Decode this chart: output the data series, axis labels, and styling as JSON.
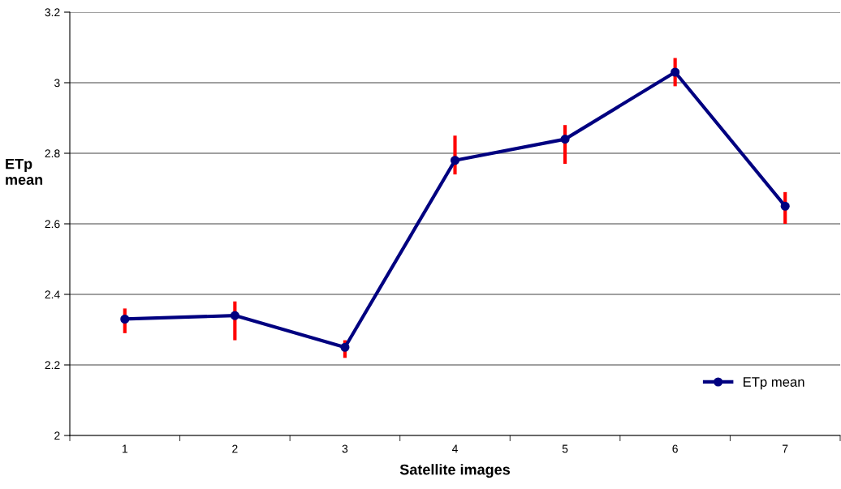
{
  "chart_data": {
    "type": "line",
    "xlabel": "Satellite images",
    "ylabel": "ETp\nmean",
    "categories": [
      "1",
      "2",
      "3",
      "4",
      "5",
      "6",
      "7"
    ],
    "series": [
      {
        "name": "ETp mean",
        "color": "#000080",
        "values": [
          2.33,
          2.34,
          2.25,
          2.78,
          2.84,
          3.03,
          2.65
        ],
        "errors": [
          [
            2.29,
            2.36
          ],
          [
            2.27,
            2.38
          ],
          [
            2.22,
            2.27
          ],
          [
            2.74,
            2.85
          ],
          [
            2.77,
            2.88
          ],
          [
            2.99,
            3.07
          ],
          [
            2.6,
            2.69
          ]
        ]
      }
    ],
    "ylim": [
      2,
      3.2
    ],
    "yticks": [
      2,
      2.2,
      2.4,
      2.6,
      2.8,
      3,
      3.2
    ],
    "grid": "y",
    "legend": "bottom right",
    "marker": "circle",
    "line_style": "solid"
  }
}
